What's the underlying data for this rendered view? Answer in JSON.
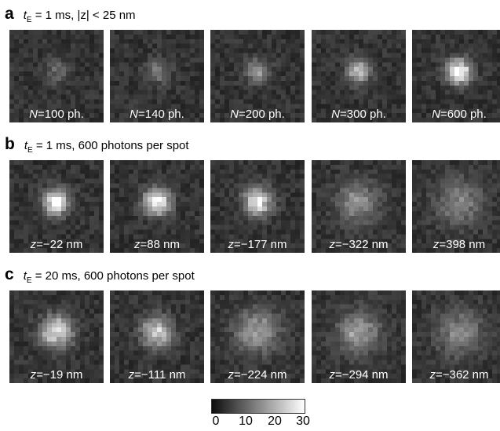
{
  "rows": [
    {
      "letter": "a",
      "title_sub": "E",
      "title_rest": "= 1 ms, |z| < 25 nm",
      "tiles": [
        {
          "var": "N",
          "text": "=100 ph.",
          "peak": 0.25,
          "sigma": 1.8
        },
        {
          "var": "N",
          "text": "=140 ph.",
          "peak": 0.32,
          "sigma": 1.8
        },
        {
          "var": "N",
          "text": "=200 ph.",
          "peak": 0.45,
          "sigma": 1.8
        },
        {
          "var": "N",
          "text": "=300 ph.",
          "peak": 0.62,
          "sigma": 1.8
        },
        {
          "var": "N",
          "text": "=600 ph.",
          "peak": 1.0,
          "sigma": 1.8
        }
      ]
    },
    {
      "letter": "b",
      "title_sub": "E",
      "title_rest": "= 1 ms, 600 photons per spot",
      "tiles": [
        {
          "var": "z",
          "text": "=−22 nm",
          "peak": 1.0,
          "sigma": 1.9
        },
        {
          "var": "z",
          "text": "=88 nm",
          "peak": 0.95,
          "sigma": 2.0
        },
        {
          "var": "z",
          "text": "=−177 nm",
          "peak": 0.85,
          "sigma": 2.1
        },
        {
          "var": "z",
          "text": "=−322 nm",
          "peak": 0.42,
          "sigma": 3.2
        },
        {
          "var": "z",
          "text": "=398 nm",
          "peak": 0.35,
          "sigma": 3.5
        }
      ]
    },
    {
      "letter": "c",
      "title_sub": "E",
      "title_rest": "= 20 ms, 600 photons per spot",
      "tiles": [
        {
          "var": "z",
          "text": "=−19 nm",
          "peak": 0.8,
          "sigma": 2.4
        },
        {
          "var": "z",
          "text": "=−111 nm",
          "peak": 0.75,
          "sigma": 2.3
        },
        {
          "var": "z",
          "text": "=−224 nm",
          "peak": 0.5,
          "sigma": 3.3
        },
        {
          "var": "z",
          "text": "=−294 nm",
          "peak": 0.48,
          "sigma": 3.2
        },
        {
          "var": "z",
          "text": "=−362 nm",
          "peak": 0.4,
          "sigma": 3.4
        }
      ]
    }
  ],
  "colorbar": {
    "ticks": [
      "0",
      "10",
      "20",
      "30"
    ],
    "range": [
      0,
      30
    ]
  }
}
